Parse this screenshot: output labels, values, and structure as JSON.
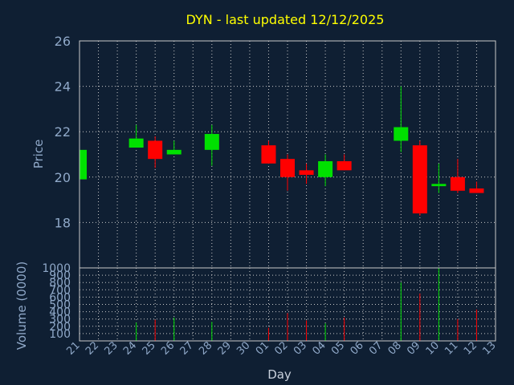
{
  "chart_data": {
    "type": "candlestick",
    "title": "DYN - last updated 12/12/2025",
    "price_axis": {
      "label": "Price",
      "ylim": [
        16,
        26
      ],
      "ticks": [
        18,
        20,
        22,
        24,
        26
      ]
    },
    "volume_axis": {
      "label": "Volume (0000)",
      "ylim": [
        0,
        1000
      ],
      "ticks": [
        100,
        200,
        300,
        400,
        500,
        600,
        700,
        800,
        900,
        1000
      ]
    },
    "xlabel": "Day",
    "x_ticks": [
      "21",
      "22",
      "23",
      "24",
      "25",
      "26",
      "27",
      "28",
      "29",
      "30",
      "01",
      "02",
      "03",
      "04",
      "05",
      "06",
      "07",
      "08",
      "09",
      "10",
      "11",
      "12",
      "13"
    ],
    "grid": true,
    "colors": {
      "background": "#0f1f33",
      "up": "#00e000",
      "down": "#ff0000",
      "title": "#ffff00",
      "axis_text": "#8fa8c8",
      "grid": "#c8c8c8"
    },
    "candles": [
      {
        "day": "21",
        "open": 19.9,
        "high": 21.2,
        "low": 19.9,
        "close": 21.2,
        "volume": 0
      },
      {
        "day": "24",
        "open": 21.3,
        "high": 22.3,
        "low": 21.3,
        "close": 21.7,
        "volume": 250
      },
      {
        "day": "25",
        "open": 21.6,
        "high": 21.8,
        "low": 20.4,
        "close": 20.8,
        "volume": 290
      },
      {
        "day": "26",
        "open": 21.0,
        "high": 21.6,
        "low": 21.0,
        "close": 21.2,
        "volume": 320
      },
      {
        "day": "28",
        "open": 21.2,
        "high": 22.3,
        "low": 20.5,
        "close": 21.9,
        "volume": 260
      },
      {
        "day": "01",
        "open": 21.4,
        "high": 21.6,
        "low": 20.6,
        "close": 20.6,
        "volume": 180
      },
      {
        "day": "02",
        "open": 20.8,
        "high": 21.0,
        "low": 19.4,
        "close": 20.0,
        "volume": 380
      },
      {
        "day": "03",
        "open": 20.3,
        "high": 20.6,
        "low": 19.7,
        "close": 20.1,
        "volume": 280
      },
      {
        "day": "04",
        "open": 20.0,
        "high": 21.0,
        "low": 19.6,
        "close": 20.7,
        "volume": 240
      },
      {
        "day": "05",
        "open": 20.7,
        "high": 21.0,
        "low": 20.3,
        "close": 20.3,
        "volume": 320
      },
      {
        "day": "08",
        "open": 21.6,
        "high": 24.0,
        "low": 21.1,
        "close": 22.2,
        "volume": 800
      },
      {
        "day": "09",
        "open": 21.4,
        "high": 21.6,
        "low": 18.3,
        "close": 18.4,
        "volume": 650
      },
      {
        "day": "10",
        "open": 19.6,
        "high": 20.6,
        "low": 19.3,
        "close": 19.7,
        "volume": 1000
      },
      {
        "day": "11",
        "open": 20.0,
        "high": 20.8,
        "low": 19.3,
        "close": 19.4,
        "volume": 300
      },
      {
        "day": "12",
        "open": 19.5,
        "high": 19.8,
        "low": 19.3,
        "close": 19.3,
        "volume": 430
      }
    ]
  }
}
